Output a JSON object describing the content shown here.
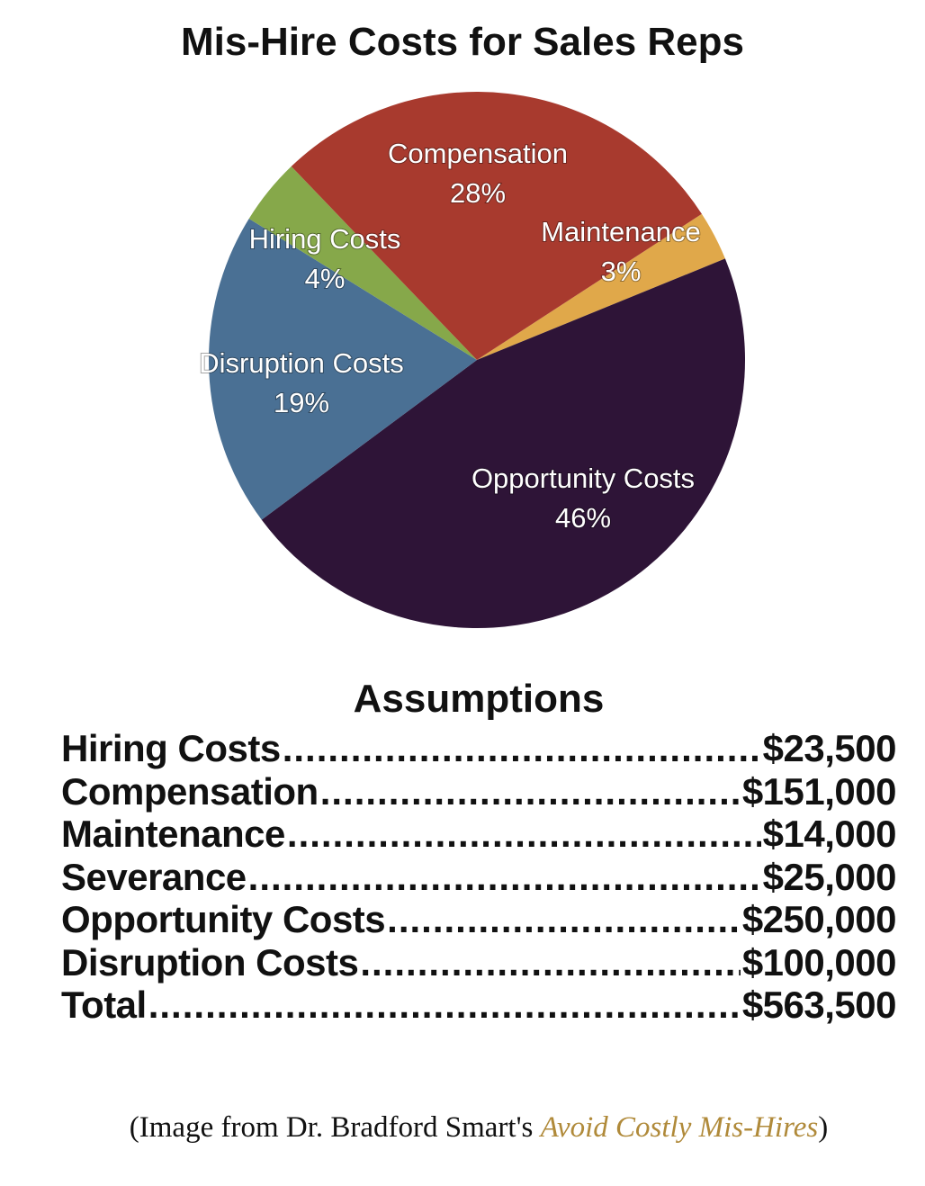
{
  "chart_data": {
    "type": "pie",
    "title": "Mis-Hire Costs for Sales Reps",
    "slices": [
      {
        "name": "Maintenance",
        "label": "Maintenance",
        "percent_label": "3%",
        "value": 3,
        "color": "#e0a84a"
      },
      {
        "name": "Opportunity Costs",
        "label": "Opportunity Costs",
        "percent_label": "46%",
        "value": 46,
        "color": "#2e1437"
      },
      {
        "name": "Disruption Costs",
        "label": "Disruption Costs",
        "percent_label": "19%",
        "value": 19,
        "color": "#4a7094"
      },
      {
        "name": "Hiring Costs",
        "label": "Hiring Costs",
        "percent_label": "4%",
        "value": 4,
        "color": "#86a84a"
      },
      {
        "name": "Compensation",
        "label": "Compensation",
        "percent_label": "28%",
        "value": 28,
        "color": "#a83a2e"
      }
    ],
    "legend": "none"
  },
  "assumptions": {
    "title": "Assumptions",
    "rows": [
      {
        "label": "Hiring Costs",
        "value": "$23,500"
      },
      {
        "label": "Compensation",
        "value": "$151,000"
      },
      {
        "label": "Maintenance",
        "value": "$14,000"
      },
      {
        "label": "Severance",
        "value": "$25,000"
      },
      {
        "label": "Opportunity Costs",
        "value": "$250,000"
      },
      {
        "label": "Disruption Costs",
        "value": "$100,000"
      },
      {
        "label": "Total",
        "value": "$563,500"
      }
    ]
  },
  "caption": {
    "prefix": "(Image from Dr. Bradford Smart's ",
    "link_text": "Avoid Costly Mis-Hires",
    "suffix": ")",
    "link_color": "#b08a3a"
  }
}
